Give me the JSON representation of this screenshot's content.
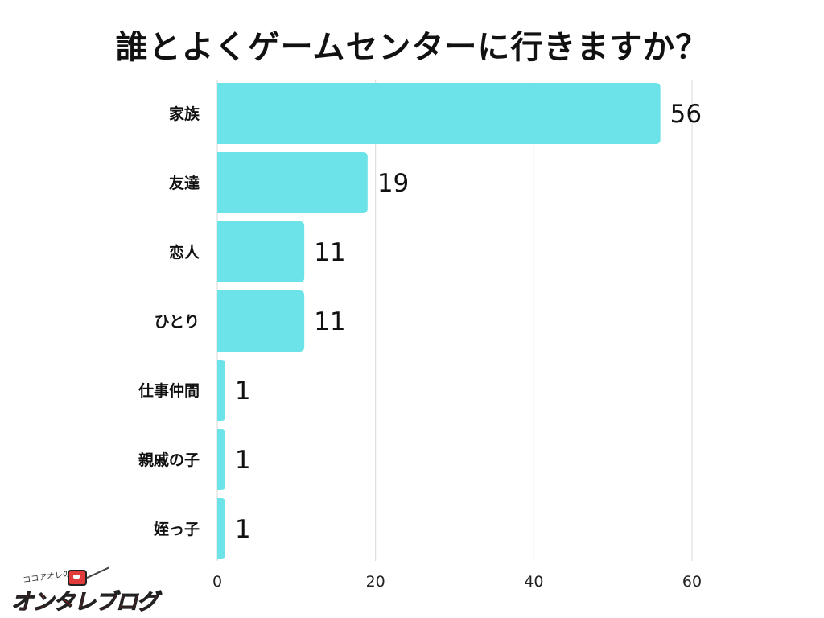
{
  "chart_data": {
    "type": "bar",
    "orientation": "horizontal",
    "title": "誰とよくゲームセンターに行きますか？",
    "categories": [
      "家族",
      "友達",
      "恋人",
      "ひとり",
      "仕事仲間",
      "親戚の子",
      "姪っ子"
    ],
    "values": [
      56,
      19,
      11,
      11,
      1,
      1,
      1
    ],
    "xlim": [
      0,
      60
    ],
    "xticks": [
      0,
      20,
      40,
      60
    ],
    "grid": true,
    "bar_color": "#6be3e8",
    "grid_color": "#d9d9d9"
  },
  "logo": {
    "small_text": "ココアオレの",
    "main_text": "オンタレブログ"
  }
}
